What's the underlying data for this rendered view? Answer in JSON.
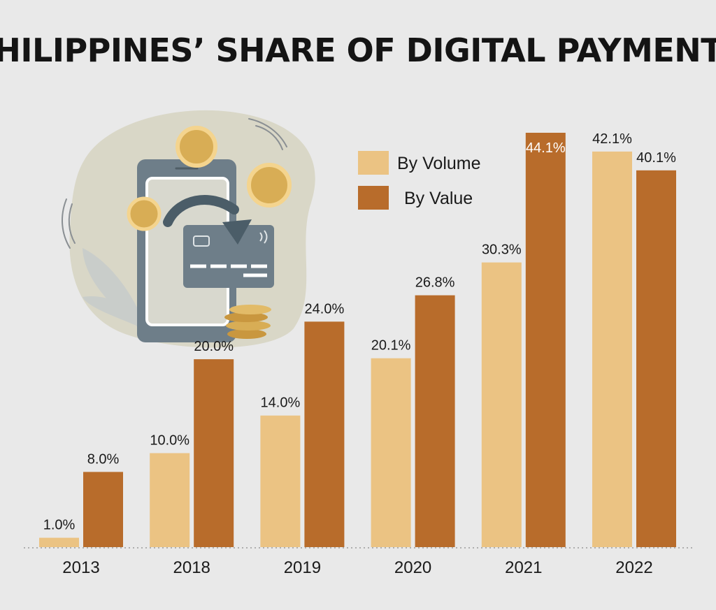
{
  "chart_data": {
    "type": "bar",
    "title": "PHILIPPINES’ SHARE OF DIGITAL PAYMENTS",
    "categories": [
      "2013",
      "2018",
      "2019",
      "2020",
      "2021",
      "2022"
    ],
    "series": [
      {
        "name": "By Volume",
        "values": [
          1.0,
          10.0,
          14.0,
          20.1,
          30.3,
          42.1
        ],
        "labels": [
          "1.0%",
          "10.0%",
          "14.0%",
          "20.1%",
          "30.3%",
          "42.1%"
        ],
        "color": "#ebc383"
      },
      {
        "name": "By Value",
        "values": [
          8.0,
          20.0,
          24.0,
          26.8,
          44.1,
          40.1
        ],
        "labels": [
          "8.0%",
          "20.0%",
          "24.0%",
          "26.8%",
          "44.1%",
          "40.1%"
        ],
        "color": "#b86c2b"
      }
    ],
    "xlabel": "",
    "ylabel": "",
    "ylim": [
      0,
      45
    ],
    "grid": false,
    "legend_position": "top-center"
  },
  "colors": {
    "background": "#e9e9e9",
    "blob": "#d9d7c7",
    "phone": "#6e7e89",
    "card": "#6e7e89",
    "coin": "#d8ad55",
    "leaf": "#c9cdca"
  },
  "illustration": {
    "icons": [
      "phone-icon",
      "credit-card-icon",
      "coin-icon",
      "leaf-icon",
      "arrow-icon"
    ]
  }
}
